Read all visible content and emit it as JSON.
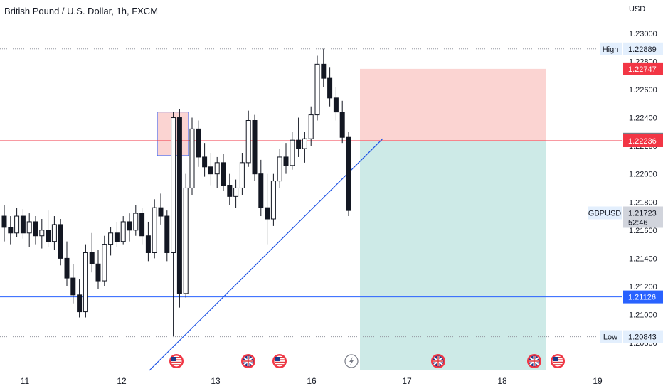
{
  "header": {
    "title": "British Pound / U.S. Dollar, 1h, FXCM",
    "currency": "USD"
  },
  "colors": {
    "up": "#26a69a",
    "down": "#ef5350",
    "candle": "#131722",
    "stop_zone": "#fbd4d2",
    "target_zone": "#cdeae7",
    "red_line": "#f23645",
    "blue_line": "#2962ff",
    "trend_line": "#1e53e5",
    "label_bg": "#e3effd"
  },
  "chart_data": {
    "type": "candlestick",
    "symbol": "GBPUSD",
    "timeframe": "1h",
    "x_labels": [
      "11",
      "12",
      "13",
      "16",
      "17",
      "18",
      "19"
    ],
    "y_ticks": [
      "1.23000",
      "1.22800",
      "1.22600",
      "1.22400",
      "1.22200",
      "1.22000",
      "1.21800",
      "1.21600",
      "1.21400",
      "1.21200",
      "1.21000",
      "1.20800"
    ],
    "ylim": [
      1.2075,
      1.2308
    ],
    "high": {
      "label": "High",
      "value": "1.22889"
    },
    "low": {
      "label": "Low",
      "value": "1.20843"
    },
    "last_price": {
      "symbol": "GBPUSD",
      "value": "1.21723",
      "countdown": "52:46"
    },
    "levels": [
      {
        "name": "stop-loss",
        "value": "1.22747"
      },
      {
        "name": "entry-upper",
        "value": "1.22247"
      },
      {
        "name": "entry",
        "value": "1.22236"
      },
      {
        "name": "support",
        "value": "1.21126"
      }
    ],
    "candles_ohlc": [
      [
        1.217,
        1.2178,
        1.2152,
        1.2162
      ],
      [
        1.2162,
        1.217,
        1.215,
        1.2158
      ],
      [
        1.2158,
        1.2176,
        1.2155,
        1.217
      ],
      [
        1.217,
        1.2175,
        1.2154,
        1.2158
      ],
      [
        1.2158,
        1.2172,
        1.2148,
        1.2166
      ],
      [
        1.2166,
        1.217,
        1.215,
        1.2156
      ],
      [
        1.2156,
        1.2168,
        1.2147,
        1.216
      ],
      [
        1.216,
        1.2174,
        1.2148,
        1.2152
      ],
      [
        1.2152,
        1.217,
        1.2146,
        1.2164
      ],
      [
        1.2164,
        1.2168,
        1.2135,
        1.214
      ],
      [
        1.214,
        1.2152,
        1.212,
        1.2126
      ],
      [
        1.2126,
        1.2136,
        1.2108,
        1.2114
      ],
      [
        1.2114,
        1.2125,
        1.2098,
        1.2102
      ],
      [
        1.2102,
        1.215,
        1.2098,
        1.2144
      ],
      [
        1.2144,
        1.2158,
        1.213,
        1.2136
      ],
      [
        1.2136,
        1.2146,
        1.2118,
        1.2124
      ],
      [
        1.2124,
        1.2156,
        1.212,
        1.215
      ],
      [
        1.215,
        1.2162,
        1.2142,
        1.2158
      ],
      [
        1.2158,
        1.2166,
        1.2148,
        1.2152
      ],
      [
        1.2152,
        1.217,
        1.215,
        1.2166
      ],
      [
        1.2166,
        1.2172,
        1.2152,
        1.216
      ],
      [
        1.216,
        1.2178,
        1.2156,
        1.2172
      ],
      [
        1.2172,
        1.2176,
        1.215,
        1.2156
      ],
      [
        1.2156,
        1.2166,
        1.2138,
        1.2144
      ],
      [
        1.2144,
        1.2182,
        1.214,
        1.2176
      ],
      [
        1.2176,
        1.2186,
        1.2164,
        1.217
      ],
      [
        1.217,
        1.2174,
        1.2138,
        1.2144
      ],
      [
        1.2144,
        1.2244,
        1.2085,
        1.224
      ],
      [
        1.224,
        1.2246,
        1.2105,
        1.2115
      ],
      [
        1.2115,
        1.22,
        1.2112,
        1.219
      ],
      [
        1.219,
        1.224,
        1.2185,
        1.2232
      ],
      [
        1.2232,
        1.2238,
        1.2205,
        1.2212
      ],
      [
        1.2212,
        1.2222,
        1.2198,
        1.2205
      ],
      [
        1.2205,
        1.2215,
        1.2192,
        1.22
      ],
      [
        1.22,
        1.2212,
        1.219,
        1.2208
      ],
      [
        1.2208,
        1.2214,
        1.2188,
        1.2192
      ],
      [
        1.2192,
        1.22,
        1.2178,
        1.2184
      ],
      [
        1.2184,
        1.2196,
        1.2176,
        1.219
      ],
      [
        1.219,
        1.2215,
        1.2185,
        1.2208
      ],
      [
        1.2208,
        1.2245,
        1.2205,
        1.2238
      ],
      [
        1.2238,
        1.2242,
        1.2195,
        1.22
      ],
      [
        1.22,
        1.221,
        1.217,
        1.2176
      ],
      [
        1.2176,
        1.22,
        1.215,
        1.2168
      ],
      [
        1.2168,
        1.22,
        1.2163,
        1.2195
      ],
      [
        1.2195,
        1.2218,
        1.219,
        1.2212
      ],
      [
        1.2212,
        1.2222,
        1.22,
        1.2206
      ],
      [
        1.2206,
        1.223,
        1.2203,
        1.2224
      ],
      [
        1.2224,
        1.224,
        1.2212,
        1.2218
      ],
      [
        1.2218,
        1.223,
        1.2208,
        1.2225
      ],
      [
        1.2225,
        1.2248,
        1.222,
        1.2242
      ],
      [
        1.2242,
        1.2284,
        1.2238,
        1.2278
      ],
      [
        1.2278,
        1.2289,
        1.2262,
        1.2268
      ],
      [
        1.2268,
        1.2276,
        1.2248,
        1.2254
      ],
      [
        1.2254,
        1.2262,
        1.2238,
        1.2244
      ],
      [
        1.2244,
        1.2252,
        1.2222,
        1.2226
      ],
      [
        1.2226,
        1.223,
        1.217,
        1.2174
      ]
    ]
  },
  "annotations": {
    "trend_line": {
      "from": {
        "x": "12",
        "y": 1.2075
      },
      "to": {
        "x": "17",
        "y": 1.2225
      }
    },
    "zone_box": {
      "y_top": 1.2244,
      "y_bottom": 1.2213
    },
    "position": {
      "entry": 1.22236,
      "stop": 1.22747,
      "target": 1.2075
    }
  },
  "events": [
    {
      "name": "us-flag",
      "x": "12"
    },
    {
      "name": "uk-flag",
      "x": "13"
    },
    {
      "name": "us-flag",
      "x": "13"
    },
    {
      "name": "lightning",
      "x": "16"
    },
    {
      "name": "uk-flag",
      "x": "17"
    },
    {
      "name": "uk-flag",
      "x": "18"
    },
    {
      "name": "us-flag",
      "x": "18"
    }
  ]
}
